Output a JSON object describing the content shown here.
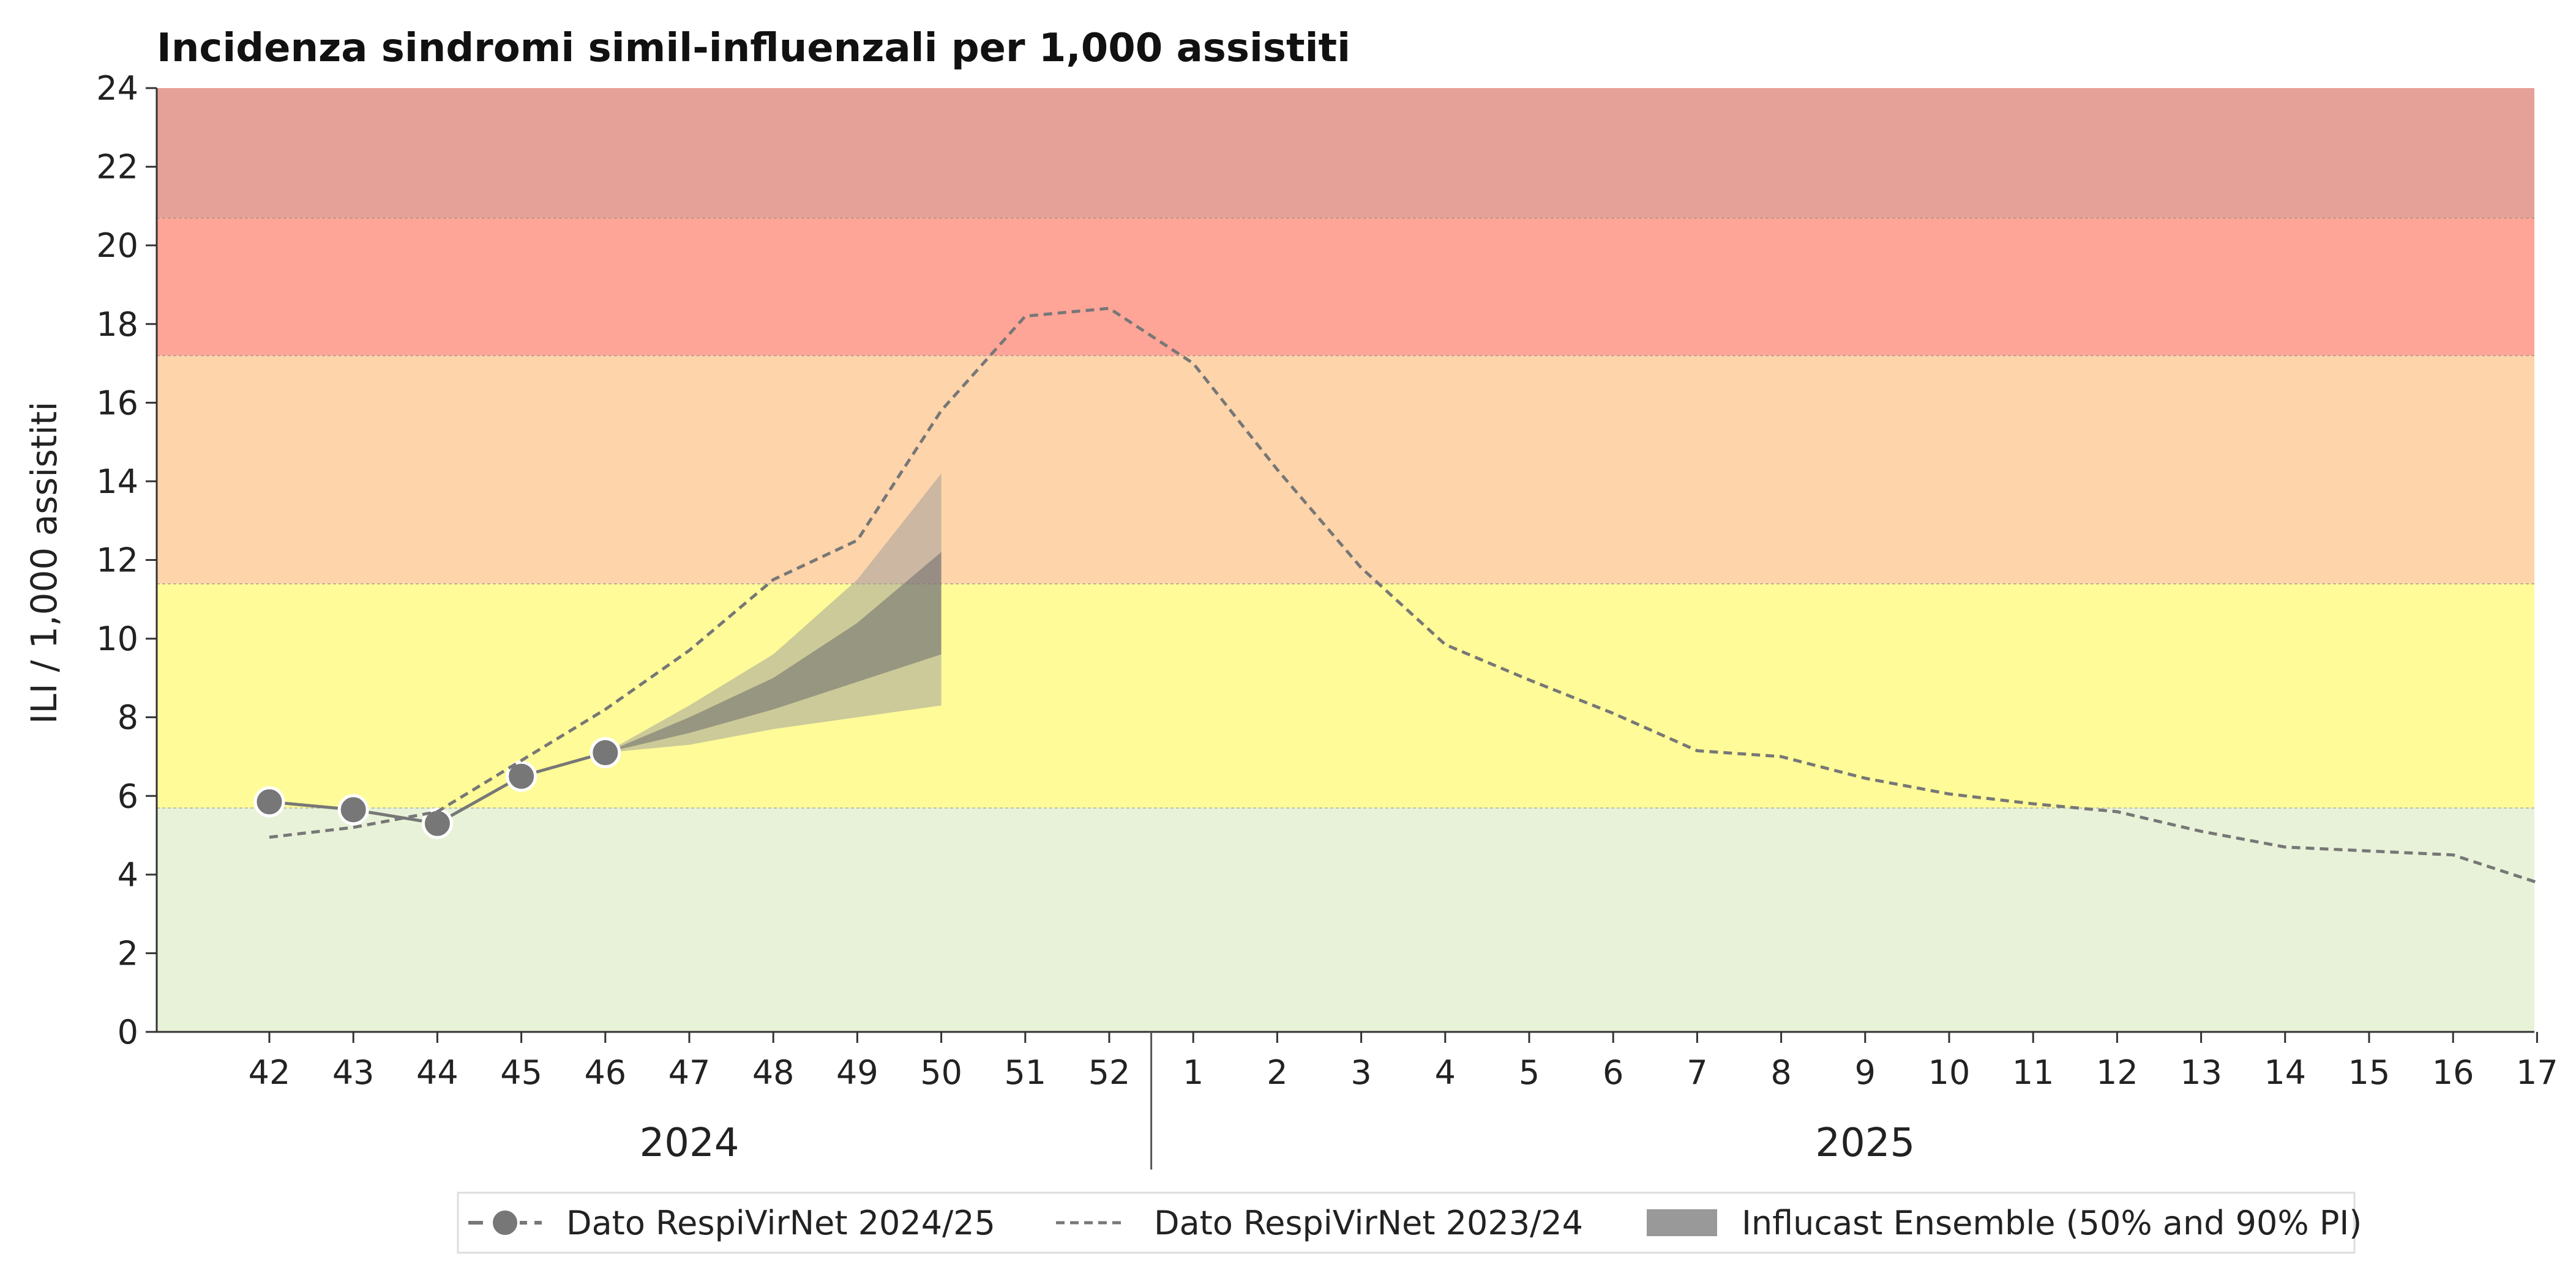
{
  "chart_data": {
    "type": "line",
    "title": "Incidenza sindromi simil-influenzali per 1,000 assistiti",
    "ylabel": "ILI / 1,000 assistiti",
    "xlabel": "",
    "ylim": [
      0,
      24
    ],
    "yticks": [
      0,
      2,
      4,
      6,
      8,
      10,
      12,
      14,
      16,
      18,
      20,
      22,
      24
    ],
    "x_weeks": [
      "42",
      "43",
      "44",
      "45",
      "46",
      "47",
      "48",
      "49",
      "50",
      "51",
      "52",
      "1",
      "2",
      "3",
      "4",
      "5",
      "6",
      "7",
      "8",
      "9",
      "10",
      "11",
      "12",
      "13",
      "14",
      "15",
      "16",
      "17"
    ],
    "year_labels": [
      {
        "label": "2024",
        "from_week": "42",
        "to_week": "52"
      },
      {
        "label": "2025",
        "from_week": "1",
        "to_week": "17"
      }
    ],
    "thresholds": [
      {
        "from": 0,
        "to": 5.7,
        "color": "#e8f2d8"
      },
      {
        "from": 5.7,
        "to": 11.4,
        "color": "#fefb98"
      },
      {
        "from": 11.4,
        "to": 17.2,
        "color": "#fed4aa"
      },
      {
        "from": 17.2,
        "to": 20.7,
        "color": "#ffa597"
      },
      {
        "from": 20.7,
        "to": 24,
        "color": "#e5a198"
      }
    ],
    "series": [
      {
        "name": "Dato RespiVirNet 2024/25",
        "style": "solid-markers",
        "color": "#777777",
        "x": [
          "42",
          "43",
          "44",
          "45",
          "46"
        ],
        "values": [
          5.85,
          5.65,
          5.3,
          6.5,
          7.1
        ]
      },
      {
        "name": "Dato RespiVirNet 2023/24",
        "style": "dashed",
        "color": "#777777",
        "x": [
          "42",
          "43",
          "44",
          "45",
          "46",
          "47",
          "48",
          "49",
          "50",
          "51",
          "52",
          "1",
          "2",
          "3",
          "4",
          "5",
          "6",
          "7",
          "8",
          "9",
          "10",
          "11",
          "12",
          "13",
          "14",
          "15",
          "16",
          "17"
        ],
        "values": [
          4.95,
          5.2,
          5.6,
          6.9,
          8.2,
          9.7,
          11.5,
          12.5,
          15.8,
          18.2,
          18.4,
          17.0,
          14.3,
          11.8,
          9.85,
          8.95,
          8.1,
          7.15,
          7.0,
          6.45,
          6.05,
          5.8,
          5.6,
          5.1,
          4.7,
          4.6,
          4.5,
          3.8
        ]
      }
    ],
    "forecast": {
      "name": "Influcast Ensemble (50% and 90% PI)",
      "color": "#999999",
      "x": [
        "46",
        "47",
        "48",
        "49",
        "50"
      ],
      "pi90_low": [
        7.1,
        7.3,
        7.7,
        8.0,
        8.3
      ],
      "pi90_high": [
        7.1,
        8.3,
        9.6,
        11.5,
        14.2
      ],
      "pi50_low": [
        7.1,
        7.6,
        8.2,
        8.9,
        9.6
      ],
      "pi50_high": [
        7.1,
        8.0,
        9.0,
        10.4,
        12.2
      ]
    },
    "legend": {
      "position": "bottom-center",
      "entries": [
        "Dato RespiVirNet 2024/25",
        "Dato RespiVirNet 2023/24",
        "Influcast Ensemble (50% and 90% PI)"
      ]
    },
    "grid": false
  }
}
